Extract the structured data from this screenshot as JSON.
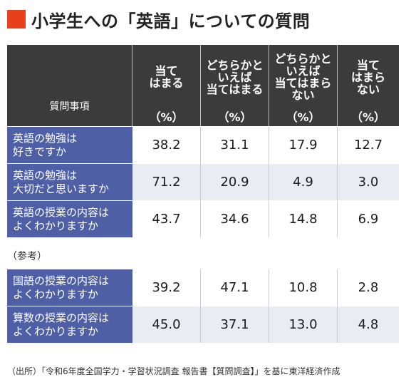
{
  "title": "小学生への「英語」についての質問",
  "header": {
    "item_label": "質問事項",
    "columns": [
      {
        "label": "当て\nはまる",
        "unit": "（%）"
      },
      {
        "label": "どちらかと\nいえば\n当てはまる",
        "unit": "（%）"
      },
      {
        "label": "どちらかと\nいえば\n当てはまら\nない",
        "unit": "（%）"
      },
      {
        "label": "当て\nはまら\nない",
        "unit": "（%）"
      }
    ]
  },
  "rows": [
    {
      "label": "英語の勉強は\n好きですか",
      "values": [
        "38.2",
        "31.1",
        "17.9",
        "12.7"
      ]
    },
    {
      "label": "英語の勉強は\n大切だと思いますか",
      "values": [
        "71.2",
        "20.9",
        "4.9",
        "3.0"
      ]
    },
    {
      "label": "英語の授業の内容は\nよくわかりますか",
      "values": [
        "43.7",
        "34.6",
        "14.8",
        "6.9"
      ]
    }
  ],
  "reference_label": "（参考）",
  "reference_rows": [
    {
      "label": "国語の授業の内容は\nよくわかりますか",
      "values": [
        "39.2",
        "47.1",
        "10.8",
        "2.8"
      ]
    },
    {
      "label": "算数の授業の内容は\nよくわかりますか",
      "values": [
        "45.0",
        "37.1",
        "13.0",
        "4.8"
      ]
    }
  ],
  "source": "（出所）「令和6年度全国学力・学習状況調査 報告書【質問調査】」を基に東洋経済作成",
  "colors": {
    "accent": "#e8401c",
    "header_bg": "#3b3b3b",
    "row_label_bg": "#4f5fa6",
    "stripe": "#e9ecf2"
  }
}
